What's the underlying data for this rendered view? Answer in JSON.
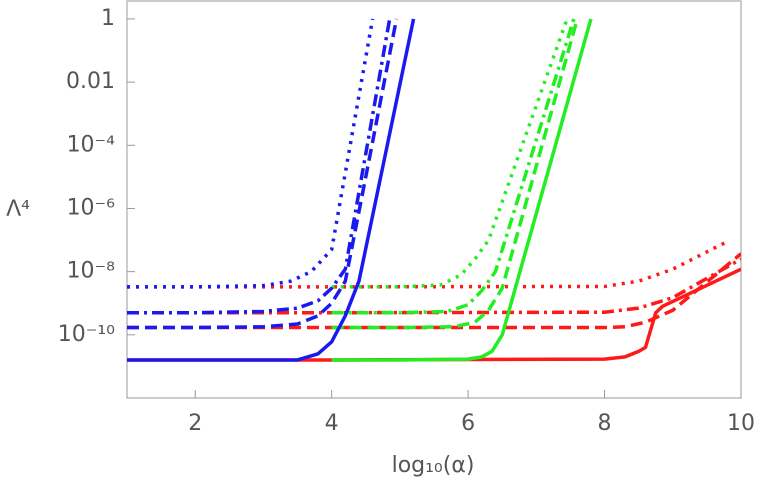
{
  "chart_data": {
    "type": "line",
    "xlabel": "log₁₀(α)",
    "ylabel": "Λ⁴",
    "xlim": [
      1,
      10
    ],
    "xticks": [
      2,
      4,
      6,
      8,
      10
    ],
    "ylim": [
      1e-12,
      3.7
    ],
    "log_y": true,
    "grid": false,
    "yticks": [
      1,
      0.01,
      {
        "value": 0.0001,
        "label": "10⁻⁴"
      },
      {
        "value": 1e-06,
        "label": "10⁻⁶"
      },
      {
        "value": 1e-08,
        "label": "10⁻⁸"
      },
      {
        "value": 1e-10,
        "label": "10⁻¹⁰"
      }
    ],
    "series": [
      {
        "color": "#ff1a1a",
        "dash": "solid",
        "x": [
          1,
          4,
          8,
          8.3,
          8.5,
          8.6,
          8.75,
          8.85,
          10
        ],
        "values": [
          1.6e-11,
          1.6e-11,
          1.7e-11,
          2e-11,
          3e-11,
          4e-11,
          5e-10,
          8e-10,
          1.2e-08
        ]
      },
      {
        "color": "#ff1a1a",
        "dash": "dashed",
        "x": [
          1,
          4,
          8,
          8.3,
          8.6,
          9,
          10
        ],
        "values": [
          1.7e-10,
          1.7e-10,
          1.7e-10,
          1.8e-10,
          2.5e-10,
          6e-10,
          3.7e-08
        ]
      },
      {
        "color": "#ff1a1a",
        "dash": "dashdot",
        "x": [
          1,
          4,
          8,
          8.5,
          9,
          10
        ],
        "values": [
          5e-10,
          5e-10,
          5.2e-10,
          7e-10,
          1.5e-09,
          2.5e-08
        ]
      },
      {
        "color": "#ff1a1a",
        "dash": "dotted",
        "x": [
          1,
          4,
          8,
          8.5,
          9,
          9.8
        ],
        "values": [
          3.3e-09,
          3.3e-09,
          3.4e-09,
          5e-09,
          1.2e-08,
          9e-08
        ]
      },
      {
        "color": "#22ee22",
        "dash": "solid",
        "x": [
          4,
          5,
          6,
          6.2,
          6.35,
          6.5,
          7.8
        ],
        "values": [
          1.6e-11,
          1.6e-11,
          1.7e-11,
          2e-11,
          3e-11,
          1e-10,
          1
        ]
      },
      {
        "color": "#22ee22",
        "dash": "dashed",
        "x": [
          4,
          5,
          5.8,
          6.1,
          6.3,
          6.5,
          7.6
        ],
        "values": [
          1.7e-10,
          1.7e-10,
          1.8e-10,
          2.5e-10,
          6e-10,
          3e-09,
          1
        ]
      },
      {
        "color": "#22ee22",
        "dash": "dashdot",
        "x": [
          4,
          5,
          5.7,
          6.0,
          6.2,
          6.4,
          7.55
        ],
        "values": [
          5e-10,
          5e-10,
          5.5e-10,
          9e-10,
          2.5e-09,
          1e-08,
          1
        ]
      },
      {
        "color": "#22ee22",
        "dash": "dotted",
        "x": [
          4,
          5,
          5.6,
          5.9,
          6.1,
          6.3,
          7.45
        ],
        "values": [
          3.3e-09,
          3.3e-09,
          3.8e-09,
          8e-09,
          2.5e-08,
          1e-07,
          1
        ]
      },
      {
        "color": "#1a1aee",
        "dash": "solid",
        "x": [
          1,
          2,
          3,
          3.5,
          3.8,
          4,
          4.2,
          4.4,
          4.8,
          5.2
        ],
        "values": [
          1.6e-11,
          1.6e-11,
          1.6e-11,
          1.6e-11,
          2.5e-11,
          6e-11,
          4e-10,
          5e-09,
          7e-05,
          1
        ]
      },
      {
        "color": "#1a1aee",
        "dash": "dashed",
        "x": [
          1,
          2,
          3,
          3.5,
          3.8,
          4,
          4.2,
          4.5,
          4.95
        ],
        "values": [
          1.7e-10,
          1.7e-10,
          1.8e-10,
          2.2e-10,
          4e-10,
          1e-09,
          5e-09,
          1e-05,
          1
        ]
      },
      {
        "color": "#1a1aee",
        "dash": "dashdot",
        "x": [
          1,
          2,
          3,
          3.5,
          3.8,
          4.0,
          4.2,
          4.85
        ],
        "values": [
          5e-10,
          5e-10,
          5.5e-10,
          7e-10,
          1.2e-09,
          3e-09,
          1.2e-08,
          1
        ]
      },
      {
        "color": "#1a1aee",
        "dash": "dotted",
        "x": [
          1,
          2,
          3,
          3.4,
          3.7,
          4.0,
          4.6
        ],
        "values": [
          3.3e-09,
          3.3e-09,
          3.6e-09,
          5e-09,
          1e-08,
          5e-08,
          1
        ]
      }
    ]
  }
}
